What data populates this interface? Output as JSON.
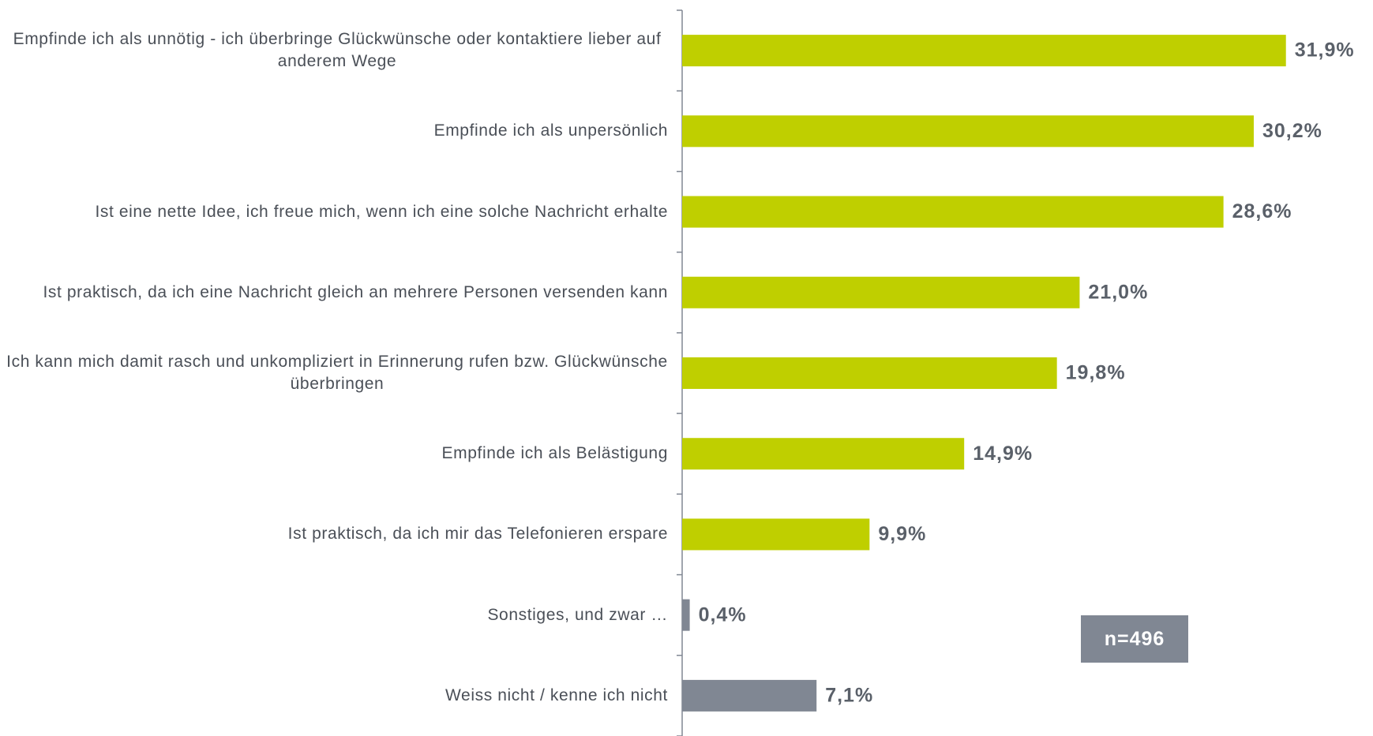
{
  "chart_data": {
    "type": "hbar",
    "categories": [
      "Empfinde ich als unnötig - ich überbringe Glückwünsche oder kontaktiere lieber auf anderem Wege",
      "Empfinde ich als unpersönlich",
      "Ist eine nette Idee, ich freue mich, wenn ich eine solche Nachricht erhalte",
      "Ist praktisch, da ich eine Nachricht gleich an mehrere Personen versenden kann",
      "Ich kann mich damit rasch und unkompliziert in Erinnerung rufen bzw. Glückwünsche überbringen",
      "Empfinde ich als Belästigung",
      "Ist praktisch, da ich mir das Telefonieren erspare",
      "Sonstiges, und zwar …",
      "Weiss nicht / kenne ich nicht"
    ],
    "values": [
      31.9,
      30.2,
      28.6,
      21.0,
      19.8,
      14.9,
      9.9,
      0.4,
      7.1
    ],
    "value_labels": [
      "31,9%",
      "30,2%",
      "28,6%",
      "21,0%",
      "19,8%",
      "14,9%",
      "9,9%",
      "0,4%",
      "7,1%"
    ],
    "colors": [
      "#bfcf00",
      "#bfcf00",
      "#bfcf00",
      "#bfcf00",
      "#bfcf00",
      "#bfcf00",
      "#bfcf00",
      "#808793",
      "#808793"
    ],
    "xlim": [
      0,
      36.5
    ],
    "annotation": "n=496"
  }
}
